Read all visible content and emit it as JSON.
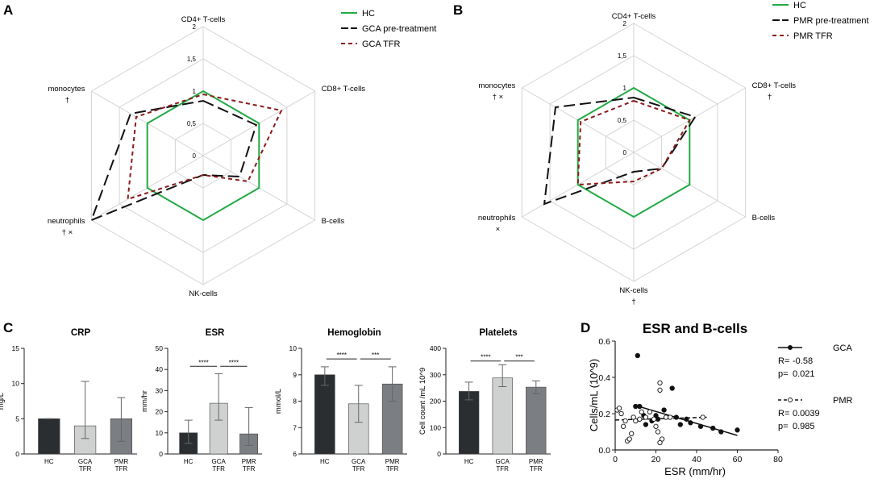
{
  "colors": {
    "hc": "#22aa44",
    "pre": "#111111",
    "tfr": "#8b1a1a",
    "bar_hc": "#2b2e31",
    "bar_gca": "#cfd1d1",
    "bar_pmr": "#7b7f83",
    "grid": "#d4d4d4"
  },
  "panel_letters": {
    "a": "A",
    "b": "B",
    "c": "C",
    "d": "D"
  },
  "chart_data": [
    {
      "id": "A",
      "type": "radar",
      "axes": [
        "CD4+ T-cells",
        "CD8+ T-cells",
        "B-cells",
        "NK-cells",
        "neutrophils",
        "monocytes"
      ],
      "axis_notes": [
        "",
        "",
        "",
        "",
        "† ×",
        "†"
      ],
      "ticks": [
        "0",
        "0,5",
        "1",
        "1,5",
        "2"
      ],
      "rmax": 2,
      "series": [
        {
          "name": "HC",
          "style": "hc",
          "values": [
            1,
            1,
            1,
            1,
            1,
            1
          ]
        },
        {
          "name": "GCA pre-treatment",
          "style": "pre",
          "values": [
            0.85,
            0.95,
            0.65,
            0.3,
            2.0,
            1.3
          ]
        },
        {
          "name": "GCA TFR",
          "style": "tfr",
          "values": [
            0.95,
            1.4,
            0.8,
            0.3,
            1.35,
            1.2
          ]
        }
      ]
    },
    {
      "id": "B",
      "type": "radar",
      "axes": [
        "CD4+ T-cells",
        "CD8+ T-cells",
        "B-cells",
        "NK-cells",
        "neutrophils",
        "monocytes"
      ],
      "axis_notes": [
        "",
        "†",
        "",
        "†",
        "×",
        "† ×"
      ],
      "ticks": [
        "0",
        "0,5",
        "1",
        "1,5",
        "2"
      ],
      "rmax": 2,
      "series": [
        {
          "name": "HC",
          "style": "hc",
          "values": [
            1,
            1,
            1,
            1,
            1,
            1
          ]
        },
        {
          "name": "PMR pre-treatment",
          "style": "pre",
          "values": [
            0.85,
            1.1,
            0.5,
            0.3,
            1.6,
            1.4
          ]
        },
        {
          "name": "PMR TFR",
          "style": "tfr",
          "values": [
            0.8,
            1.0,
            0.5,
            0.45,
            1.0,
            0.95
          ]
        }
      ]
    },
    {
      "id": "C1",
      "type": "bar",
      "title": "CRP",
      "ylabel": "mg/L",
      "categories": [
        [
          "HC"
        ],
        [
          "GCA",
          "TFR"
        ],
        [
          "PMR",
          "TFR"
        ]
      ],
      "values": [
        5,
        4,
        5
      ],
      "errors_low": [
        5,
        2.2,
        1.8
      ],
      "errors_high": [
        5,
        10.3,
        8
      ],
      "ylim": [
        0,
        15
      ],
      "yticks": [
        "0",
        "5",
        "10",
        "15"
      ],
      "brackets": []
    },
    {
      "id": "C2",
      "type": "bar",
      "title": "ESR",
      "ylabel": "mm/hr",
      "categories": [
        [
          "HC"
        ],
        [
          "GCA",
          "TFR"
        ],
        [
          "PMR",
          "TFR"
        ]
      ],
      "values": [
        10,
        24,
        9.5
      ],
      "errors_low": [
        5,
        16,
        4
      ],
      "errors_high": [
        16,
        38,
        22
      ],
      "ylim": [
        0,
        50
      ],
      "yticks": [
        "0",
        "10",
        "20",
        "30",
        "40",
        "50"
      ],
      "brackets": [
        {
          "from": 0,
          "to": 1,
          "y": 41.5,
          "label": "****"
        },
        {
          "from": 1,
          "to": 2,
          "y": 41.5,
          "label": "****"
        }
      ]
    },
    {
      "id": "C3",
      "type": "bar",
      "title": "Hemoglobin",
      "ylabel": "mmol/L",
      "categories": [
        [
          "HC"
        ],
        [
          "GCA",
          "TFR"
        ],
        [
          "PMR",
          "TFR"
        ]
      ],
      "values": [
        9.0,
        7.9,
        8.65
      ],
      "errors_low": [
        8.6,
        7.2,
        8.0
      ],
      "errors_high": [
        9.3,
        8.6,
        9.3
      ],
      "ylim": [
        6,
        10
      ],
      "yticks": [
        "6",
        "7",
        "8",
        "9",
        "10"
      ],
      "brackets": [
        {
          "from": 0,
          "to": 1,
          "y": 9.6,
          "label": "****"
        },
        {
          "from": 1,
          "to": 2,
          "y": 9.6,
          "label": "***"
        }
      ]
    },
    {
      "id": "C4",
      "type": "bar",
      "title": "Platelets",
      "ylabel": "Cell count /mL 10^9",
      "categories": [
        [
          "HC"
        ],
        [
          "GCA",
          "TFR"
        ],
        [
          "PMR",
          "TFR"
        ]
      ],
      "values": [
        237,
        288,
        253
      ],
      "errors_low": [
        205,
        255,
        228
      ],
      "errors_high": [
        272,
        338,
        277
      ],
      "ylim": [
        0,
        400
      ],
      "yticks": [
        "0",
        "100",
        "200",
        "300",
        "400"
      ],
      "brackets": [
        {
          "from": 0,
          "to": 1,
          "y": 352,
          "label": "****"
        },
        {
          "from": 1,
          "to": 2,
          "y": 352,
          "label": "***"
        }
      ]
    },
    {
      "id": "D",
      "type": "scatter",
      "title": "ESR and B-cells",
      "xlabel": "ESR (mm/hr)",
      "ylabel": "Cells/mL (10^9)",
      "xlim": [
        0,
        80
      ],
      "ylim": [
        0,
        0.6
      ],
      "xticks": [
        0,
        20,
        40,
        60,
        80
      ],
      "yticks": [
        0,
        0.2,
        0.4,
        0.6
      ],
      "series": [
        {
          "name": "GCA",
          "marker": "filled",
          "line": "solid",
          "R_label": "R=",
          "R": "-0.58",
          "p_label": "p=",
          "p": "0.021",
          "fit": [
            [
              10,
              0.245
            ],
            [
              60,
              0.08
            ]
          ],
          "points": [
            [
              11,
              0.52
            ],
            [
              10,
              0.24
            ],
            [
              12,
              0.24
            ],
            [
              14,
              0.19
            ],
            [
              15,
              0.14
            ],
            [
              18,
              0.16
            ],
            [
              20,
              0.19
            ],
            [
              21,
              0.17
            ],
            [
              24,
              0.22
            ],
            [
              28,
              0.34
            ],
            [
              30,
              0.18
            ],
            [
              32,
              0.14
            ],
            [
              35,
              0.17
            ],
            [
              37,
              0.15
            ],
            [
              42,
              0.13
            ],
            [
              48,
              0.12
            ],
            [
              52,
              0.1
            ],
            [
              60,
              0.11
            ]
          ]
        },
        {
          "name": "PMR",
          "marker": "open",
          "line": "dashed",
          "R_label": "R=",
          "R": "0.0039",
          "p_label": "p=",
          "p": "0.985",
          "fit": [
            [
              0,
              0.165
            ],
            [
              45,
              0.18
            ]
          ],
          "points": [
            [
              1,
              0.22
            ],
            [
              2,
              0.23
            ],
            [
              3,
              0.2
            ],
            [
              4,
              0.13
            ],
            [
              5,
              0.16
            ],
            [
              6,
              0.05
            ],
            [
              7,
              0.06
            ],
            [
              8,
              0.09
            ],
            [
              9,
              0.18
            ],
            [
              10,
              0.16
            ],
            [
              12,
              0.17
            ],
            [
              13,
              0.21
            ],
            [
              15,
              0.18
            ],
            [
              17,
              0.21
            ],
            [
              19,
              0.17
            ],
            [
              20,
              0.13
            ],
            [
              21,
              0.1
            ],
            [
              22,
              0.37
            ],
            [
              22,
              0.33
            ],
            [
              23,
              0.06
            ],
            [
              22,
              0.04
            ],
            [
              25,
              0.18
            ],
            [
              27,
              0.18
            ],
            [
              43,
              0.18
            ]
          ]
        }
      ]
    }
  ]
}
